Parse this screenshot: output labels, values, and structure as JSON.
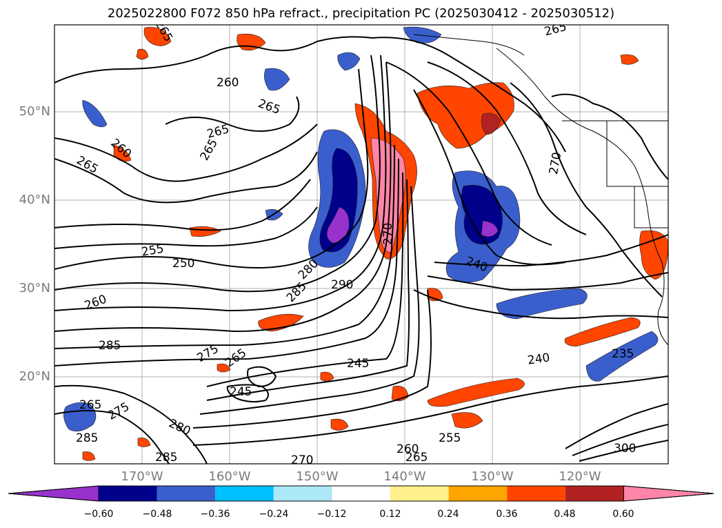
{
  "title": "2025022800 F072 850 hPa refract., precipitation PC (2025030412 - 2025030512)",
  "lat_labels": [
    "50°N",
    "40°N",
    "30°N",
    "20°N"
  ],
  "lon_labels": [
    "170°W",
    "160°W",
    "150°W",
    "140°W",
    "130°W",
    "120°W"
  ],
  "contour_labels": [
    "260",
    "265",
    "265",
    "265",
    "265",
    "260",
    "265",
    "255",
    "250",
    "260",
    "285",
    "280",
    "285",
    "290",
    "275",
    "265",
    "245",
    "245",
    "265",
    "275",
    "285",
    "280",
    "285",
    "270",
    "260",
    "265",
    "255",
    "270",
    "240",
    "240",
    "235",
    "270",
    "265",
    "300"
  ],
  "colorbar": {
    "ticks": [
      "−0.60",
      "−0.48",
      "−0.36",
      "−0.24",
      "−0.12",
      "0.12",
      "0.24",
      "0.36",
      "0.48",
      "0.60"
    ],
    "colors": [
      "#9932cc",
      "#00008b",
      "#3a5fcd",
      "#00bfff",
      "#ade8f8",
      "#ffffff",
      "#fff08a",
      "#ffa500",
      "#ff4500",
      "#b22222",
      "#ff85a8"
    ]
  }
}
